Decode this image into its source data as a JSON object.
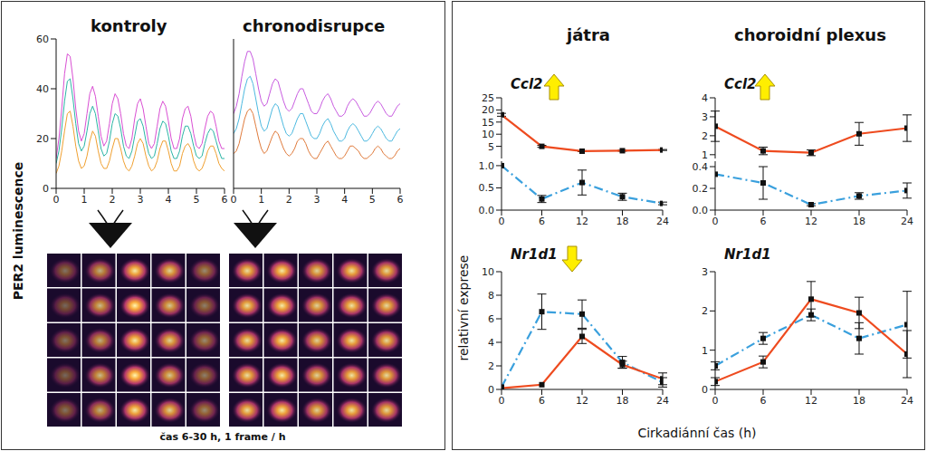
{
  "figure": {
    "image_caption": "čas 6-30 h, 1 frame / h",
    "columns": [
      "játra",
      "choroidní plexus"
    ],
    "ylabel": "relativní exprese",
    "xlabel": "Cirkadiánní čas (h)"
  },
  "chart_data": [
    {
      "type": "line",
      "title": "kontroly",
      "ylabel": "PER2 luminescence",
      "x": [
        0,
        0.1,
        0.2,
        0.3,
        0.4,
        0.5,
        0.6,
        0.7,
        0.8,
        0.9,
        1,
        1.1,
        1.2,
        1.3,
        1.4,
        1.5,
        1.6,
        1.7,
        1.8,
        1.9,
        2,
        2.1,
        2.2,
        2.3,
        2.4,
        2.5,
        2.6,
        2.7,
        2.8,
        2.9,
        3,
        3.1,
        3.2,
        3.3,
        3.4,
        3.5,
        3.6,
        3.7,
        3.8,
        3.9,
        4,
        4.1,
        4.2,
        4.3,
        4.4,
        4.5,
        4.6,
        4.7,
        4.8,
        4.9,
        5,
        5.1,
        5.2,
        5.3,
        5.4,
        5.5,
        5.6,
        5.7,
        5.8,
        5.9,
        6
      ],
      "xlim": [
        0,
        6
      ],
      "xticks": [
        0,
        1,
        2,
        3,
        4,
        5,
        6
      ],
      "ylim": [
        0,
        60
      ],
      "yticks": [
        0,
        20,
        40,
        60
      ],
      "series": [
        {
          "color": "#d94fd3",
          "values": [
            12,
            20,
            32,
            46,
            54,
            53,
            44,
            32,
            23,
            19,
            22,
            30,
            38,
            41,
            37,
            29,
            21,
            17,
            19,
            26,
            34,
            38,
            36,
            30,
            22,
            17,
            16,
            20,
            28,
            34,
            36,
            32,
            25,
            18,
            16,
            18,
            25,
            32,
            35,
            33,
            27,
            20,
            16,
            16,
            20,
            28,
            32,
            33,
            29,
            22,
            17,
            16,
            18,
            24,
            29,
            31,
            30,
            25,
            19,
            16,
            16
          ]
        },
        {
          "color": "#2bb5a5",
          "values": [
            10,
            15,
            24,
            35,
            43,
            44,
            36,
            26,
            18,
            15,
            17,
            23,
            30,
            33,
            30,
            23,
            16,
            13,
            14,
            19,
            26,
            30,
            29,
            24,
            17,
            13,
            12,
            15,
            21,
            27,
            28,
            25,
            19,
            14,
            12,
            13,
            18,
            24,
            27,
            26,
            21,
            15,
            12,
            12,
            15,
            21,
            25,
            25,
            22,
            17,
            13,
            12,
            13,
            18,
            22,
            24,
            23,
            19,
            15,
            12,
            12
          ]
        },
        {
          "color": "#f0a030",
          "values": [
            6,
            9,
            15,
            23,
            30,
            31,
            25,
            17,
            11,
            8,
            9,
            13,
            19,
            23,
            21,
            15,
            10,
            8,
            8,
            11,
            16,
            20,
            20,
            16,
            11,
            8,
            7,
            9,
            13,
            18,
            20,
            18,
            13,
            9,
            7,
            8,
            11,
            16,
            19,
            19,
            15,
            10,
            7,
            7,
            9,
            14,
            17,
            18,
            16,
            11,
            8,
            7,
            8,
            11,
            15,
            17,
            17,
            14,
            10,
            8,
            7
          ]
        }
      ]
    },
    {
      "type": "line",
      "title": "chronodisrupce",
      "tick_labels": "x",
      "x": [
        0,
        0.1,
        0.2,
        0.3,
        0.4,
        0.5,
        0.6,
        0.7,
        0.8,
        0.9,
        1,
        1.1,
        1.2,
        1.3,
        1.4,
        1.5,
        1.6,
        1.7,
        1.8,
        1.9,
        2,
        2.1,
        2.2,
        2.3,
        2.4,
        2.5,
        2.6,
        2.7,
        2.8,
        2.9,
        3,
        3.1,
        3.2,
        3.3,
        3.4,
        3.5,
        3.6,
        3.7,
        3.8,
        3.9,
        4,
        4.1,
        4.2,
        4.3,
        4.4,
        4.5,
        4.6,
        4.7,
        4.8,
        4.9,
        5,
        5.1,
        5.2,
        5.3,
        5.4,
        5.5,
        5.6,
        5.7,
        5.8,
        5.9,
        6
      ],
      "xlim": [
        0,
        6
      ],
      "xticks": [
        0,
        1,
        2,
        3,
        4,
        5,
        6
      ],
      "ylim": [
        0,
        60
      ],
      "yticks": [
        0,
        20,
        40,
        60
      ],
      "series": [
        {
          "color": "#c85be0",
          "values": [
            30,
            33,
            38,
            45,
            51,
            55,
            55,
            52,
            46,
            40,
            35,
            33,
            34,
            38,
            42,
            44,
            43,
            39,
            35,
            32,
            31,
            32,
            35,
            38,
            40,
            40,
            37,
            34,
            31,
            30,
            30,
            32,
            35,
            37,
            38,
            36,
            33,
            31,
            29,
            29,
            30,
            33,
            35,
            36,
            35,
            33,
            31,
            29,
            29,
            30,
            32,
            34,
            35,
            34,
            32,
            30,
            29,
            29,
            31,
            33,
            34
          ]
        },
        {
          "color": "#4cb9e0",
          "values": [
            22,
            24,
            28,
            34,
            40,
            44,
            45,
            42,
            36,
            30,
            25,
            23,
            24,
            28,
            32,
            34,
            33,
            29,
            25,
            22,
            21,
            22,
            25,
            28,
            30,
            30,
            27,
            24,
            21,
            20,
            20,
            22,
            25,
            27,
            28,
            26,
            23,
            21,
            19,
            19,
            20,
            23,
            25,
            26,
            25,
            23,
            21,
            19,
            19,
            20,
            22,
            24,
            25,
            24,
            22,
            20,
            19,
            19,
            21,
            23,
            24
          ]
        },
        {
          "color": "#e07b3c",
          "values": [
            14,
            15,
            18,
            23,
            28,
            31,
            32,
            30,
            25,
            20,
            16,
            14,
            15,
            18,
            21,
            23,
            22,
            19,
            16,
            14,
            13,
            14,
            16,
            19,
            20,
            20,
            18,
            15,
            13,
            12,
            12,
            14,
            16,
            18,
            19,
            17,
            15,
            13,
            12,
            12,
            13,
            15,
            17,
            17,
            16,
            15,
            13,
            12,
            12,
            13,
            14,
            16,
            17,
            16,
            14,
            13,
            12,
            12,
            13,
            15,
            16
          ]
        }
      ]
    },
    {
      "type": "line",
      "title": "Ccl2",
      "x": [
        0,
        6,
        12,
        18,
        24
      ],
      "xlim": [
        0,
        24
      ],
      "xticks": [
        0,
        6,
        12,
        18,
        24
      ],
      "segments": [
        {
          "ylim": [
            0,
            25
          ],
          "yticks": [
            5,
            10,
            15,
            20,
            25
          ],
          "series": [
            {
              "color": "#ee4b1f",
              "line_style": "solid",
              "marker": "square",
              "values": [
                18,
                5,
                3,
                3.2,
                3.5
              ],
              "errors": [
                0.6,
                0.4,
                0.2,
                0.2,
                0.2
              ]
            }
          ]
        },
        {
          "ylim": [
            0,
            1.1
          ],
          "yticks": [
            {
              "value": 0,
              "label": "0.0"
            },
            0.5,
            {
              "value": 1,
              "label": "1.0"
            }
          ],
          "series": [
            {
              "color": "#3aa0dd",
              "line_style": "dashdot",
              "marker": "square",
              "values": [
                1.0,
                0.25,
                0.62,
                0.3,
                0.15
              ],
              "errors": [
                null,
                0.08,
                0.28,
                0.08,
                0.03
              ]
            }
          ]
        }
      ]
    },
    {
      "type": "line",
      "title": "Ccl2",
      "x": [
        0,
        6,
        12,
        18,
        24
      ],
      "xlim": [
        0,
        24
      ],
      "xticks": [
        0,
        6,
        12,
        18,
        24
      ],
      "segments": [
        {
          "ylim": [
            0.8,
            4
          ],
          "yticks": [
            1,
            2,
            3,
            4
          ],
          "series": [
            {
              "color": "#ee4b1f",
              "line_style": "solid",
              "marker": "square",
              "values": [
                2.5,
                1.2,
                1.1,
                2.1,
                2.4
              ],
              "errors": [
                0.8,
                0.2,
                0.15,
                0.6,
                0.7
              ]
            }
          ]
        },
        {
          "ylim": [
            0,
            0.45
          ],
          "yticks": [
            {
              "value": 0,
              "label": "0.0"
            },
            0.2,
            0.4
          ],
          "series": [
            {
              "color": "#3aa0dd",
              "line_style": "dashdot",
              "marker": "square",
              "values": [
                0.33,
                0.25,
                0.05,
                0.13,
                0.18
              ],
              "errors": [
                null,
                0.15,
                0.01,
                0.03,
                0.07
              ]
            }
          ]
        }
      ]
    },
    {
      "type": "line",
      "title": "Nr1d1",
      "x": [
        0,
        6,
        12,
        18,
        24
      ],
      "xlim": [
        0,
        24
      ],
      "xticks": [
        0,
        6,
        12,
        18,
        24
      ],
      "ylim": [
        0,
        10
      ],
      "yticks": [
        0,
        2,
        4,
        6,
        8,
        10
      ],
      "series": [
        {
          "color": "#3aa0dd",
          "line_style": "dashdot",
          "marker": "square",
          "values": [
            0.2,
            6.6,
            6.4,
            2.3,
            0.6
          ],
          "errors": [
            null,
            1.5,
            1.2,
            0.5,
            0.4
          ]
        },
        {
          "color": "#ee4b1f",
          "line_style": "solid",
          "marker": "square",
          "values": [
            0.1,
            0.4,
            4.5,
            2.1,
            0.9
          ],
          "errors": [
            null,
            null,
            0.6,
            0.3,
            0.5
          ]
        }
      ]
    },
    {
      "type": "line",
      "title": "Nr1d1",
      "x": [
        0,
        6,
        12,
        18,
        24
      ],
      "xlim": [
        0,
        24
      ],
      "xticks": [
        0,
        6,
        12,
        18,
        24
      ],
      "ylim": [
        0,
        3
      ],
      "yticks": [
        0,
        1,
        2,
        3
      ],
      "series": [
        {
          "color": "#3aa0dd",
          "line_style": "dashdot",
          "marker": "square",
          "values": [
            0.6,
            1.3,
            1.9,
            1.3,
            1.65
          ],
          "errors": [
            0.1,
            0.15,
            0.15,
            0.4,
            0.85
          ]
        },
        {
          "color": "#ee4b1f",
          "line_style": "solid",
          "marker": "square",
          "values": [
            0.2,
            0.7,
            2.3,
            1.95,
            0.9
          ],
          "errors": [
            0.1,
            0.15,
            0.45,
            0.4,
            0.6
          ]
        }
      ]
    }
  ]
}
